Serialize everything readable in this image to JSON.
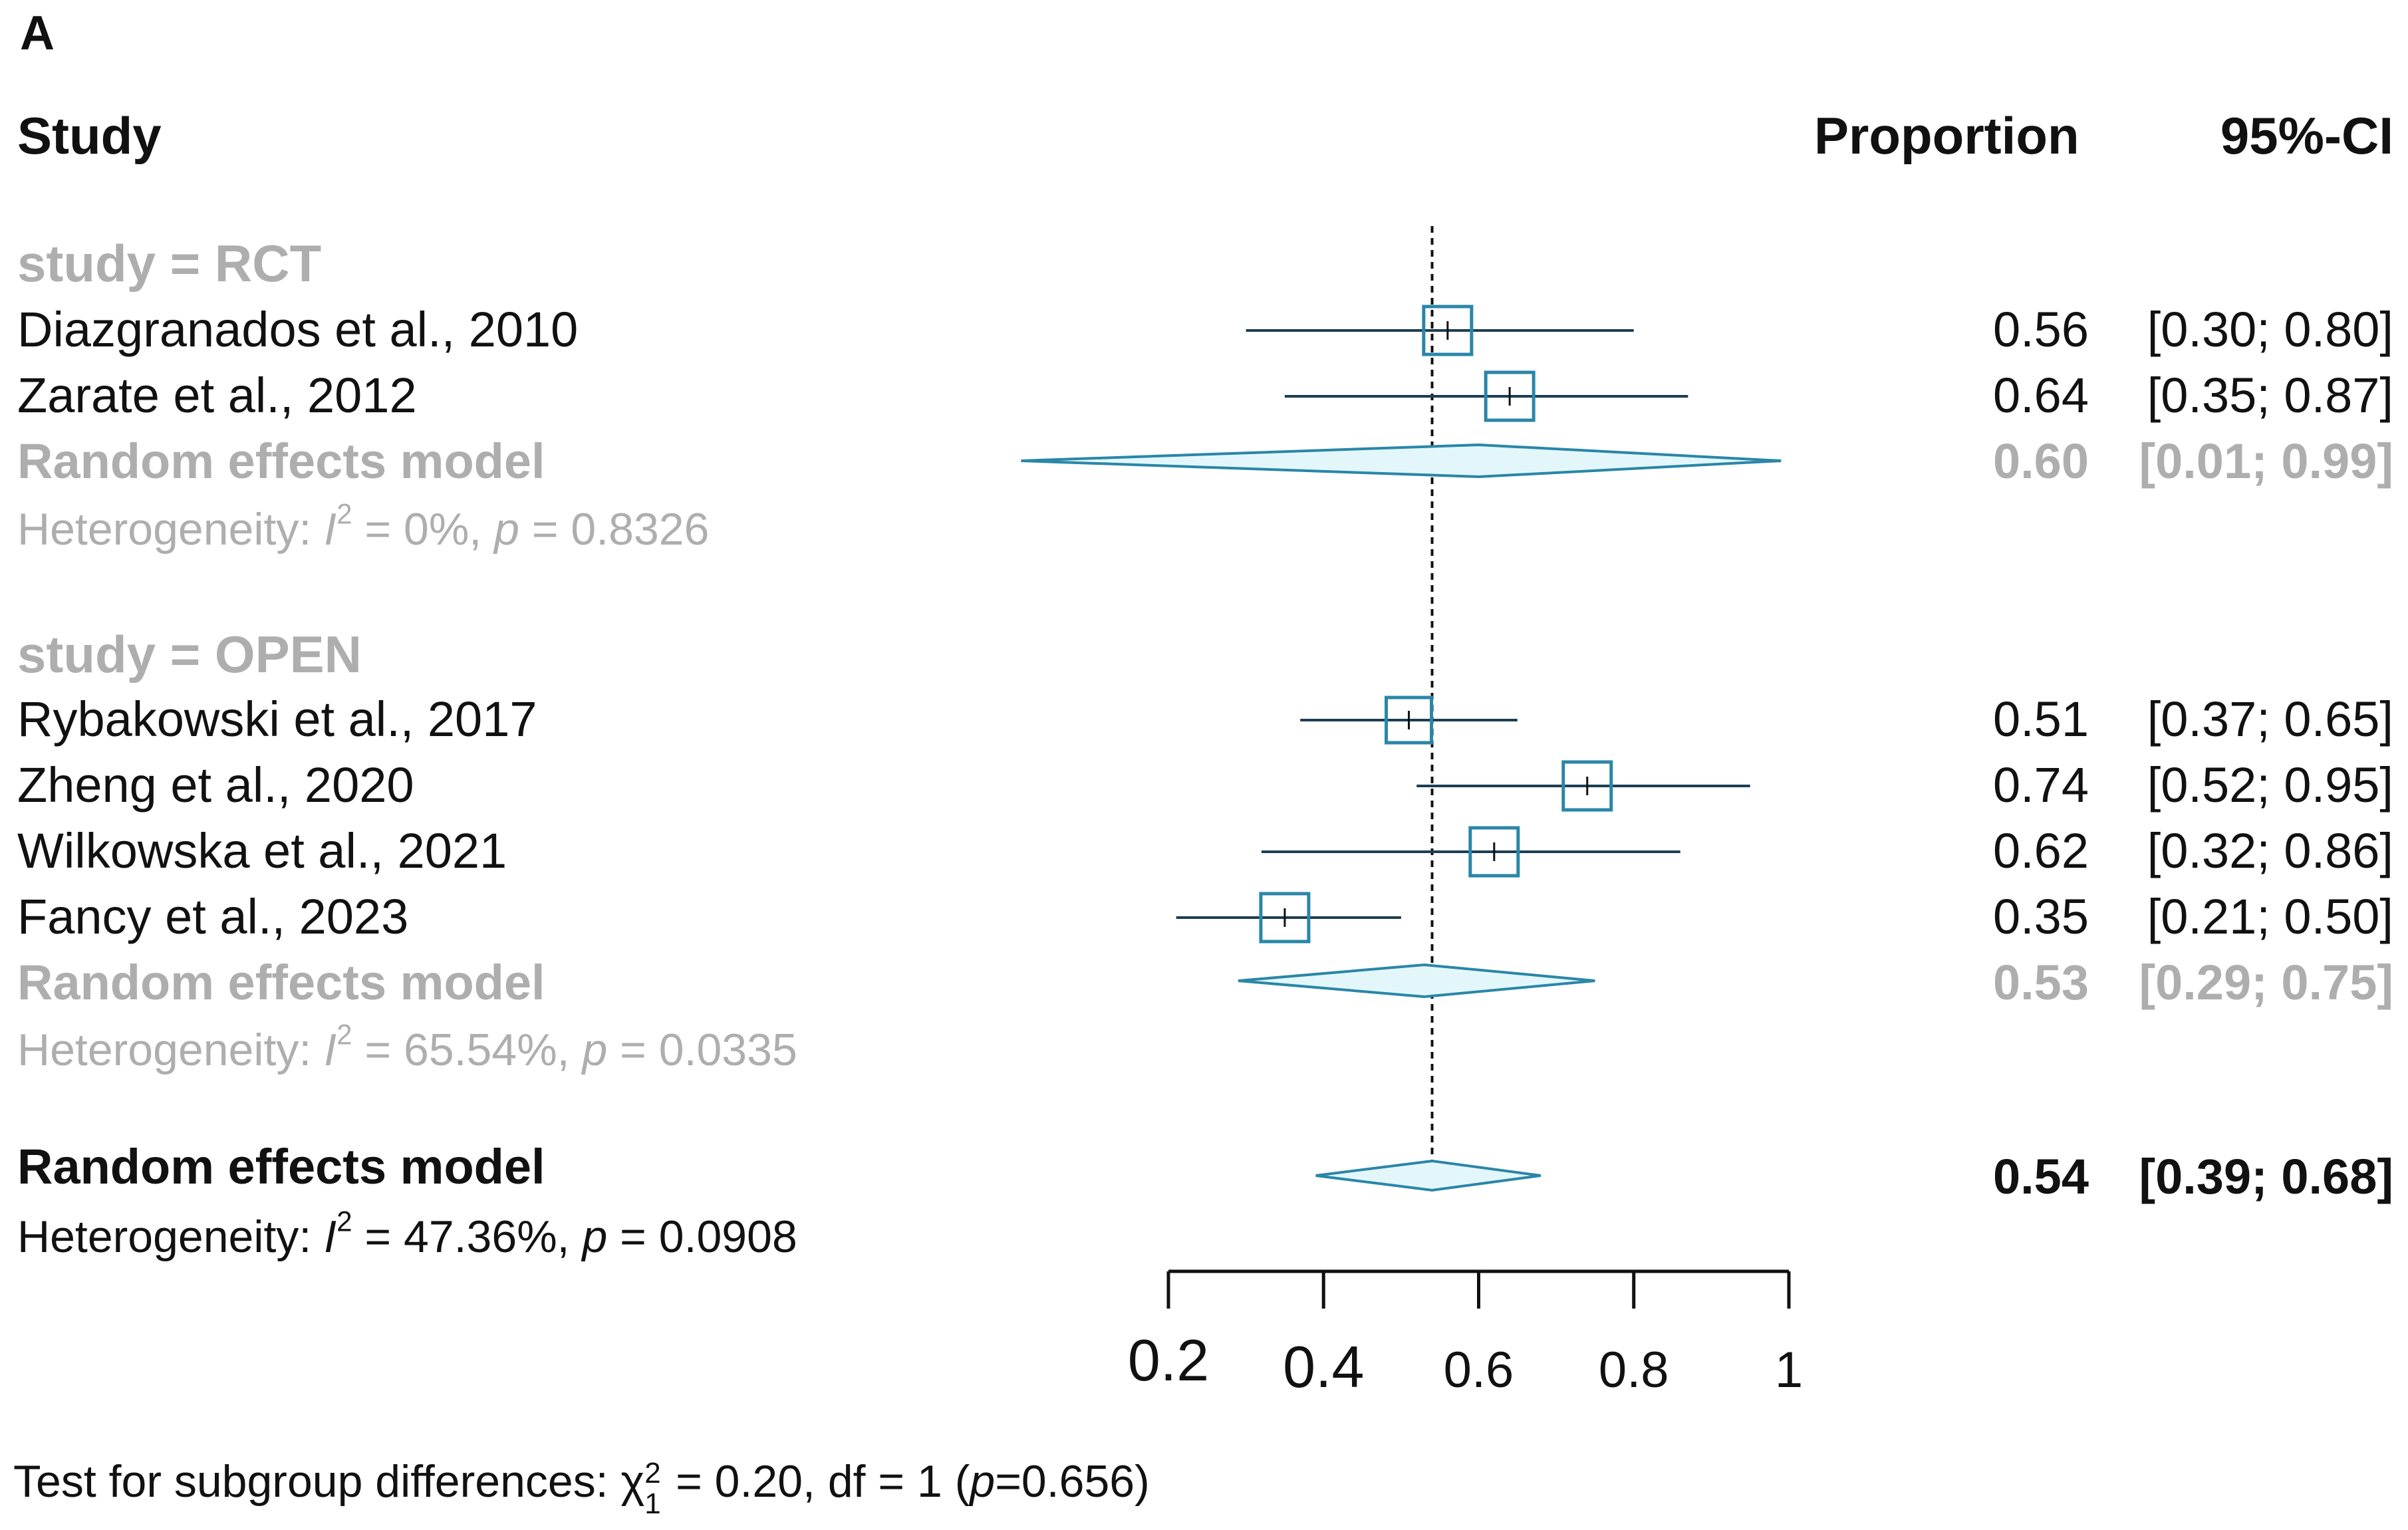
{
  "panel_label": "A",
  "headers": {
    "study": "Study",
    "proportion": "Proportion",
    "ci": "95%-CI"
  },
  "groups": [
    {
      "title": "study = RCT",
      "studies": [
        {
          "name": "Diazgranados et al., 2010",
          "proportion": "0.56",
          "ci": "[0.30; 0.80]"
        },
        {
          "name": "Zarate et al., 2012",
          "proportion": "0.64",
          "ci": "[0.35; 0.87]"
        }
      ],
      "model": {
        "label": "Random effects model",
        "proportion": "0.60",
        "ci": "[0.01; 0.99]"
      },
      "heterogeneity": {
        "prefix": "Heterogeneity: ",
        "i_symbol": "I",
        "sup": "2",
        "i2_text": " = 0%, ",
        "p_symbol": "p",
        "p_text": " = 0.8326"
      }
    },
    {
      "title": "study = OPEN",
      "studies": [
        {
          "name": "Rybakowski et al., 2017",
          "proportion": "0.51",
          "ci": "[0.37; 0.65]"
        },
        {
          "name": "Zheng et al., 2020",
          "proportion": "0.74",
          "ci": "[0.52; 0.95]"
        },
        {
          "name": "Wilkowska et al., 2021",
          "proportion": "0.62",
          "ci": "[0.32; 0.86]"
        },
        {
          "name": "Fancy et al., 2023",
          "proportion": "0.35",
          "ci": "[0.21; 0.50]"
        }
      ],
      "model": {
        "label": "Random effects model",
        "proportion": "0.53",
        "ci": "[0.29; 0.75]"
      },
      "heterogeneity": {
        "prefix": "Heterogeneity: ",
        "i_symbol": "I",
        "sup": "2",
        "i2_text": " = 65.54%, ",
        "p_symbol": "p",
        "p_text": " = 0.0335"
      }
    }
  ],
  "overall": {
    "label": "Random effects model",
    "proportion": "0.54",
    "ci": "[0.39; 0.68]",
    "heterogeneity": {
      "prefix": "Heterogeneity: ",
      "i_symbol": "I",
      "sup": "2",
      "i2_text": " = 47.36%, ",
      "p_symbol": "p",
      "p_text": " = 0.0908"
    }
  },
  "subgroup_test": {
    "prefix": "Test for subgroup differences: ",
    "chi": "χ",
    "chi_sup": "2",
    "chi_sub": "1",
    "rest1": " = 0.20, df = 1 (",
    "p_symbol": "p",
    "rest2": "=0.656)"
  },
  "colors": {
    "marker": "#2a86a8",
    "ci_line": "#1c3e52",
    "diamond_fill": "#e3f7fa",
    "grey_text": "#aeaeae"
  },
  "chart_data": {
    "type": "forest",
    "xlim": [
      0.2,
      1
    ],
    "ticks": [
      0.2,
      0.4,
      0.6,
      0.8,
      1
    ],
    "tick_labels": [
      "0.2",
      "0.4",
      "0.6",
      "0.8",
      "1"
    ],
    "reference_line": 0.54,
    "studies": [
      {
        "name": "Diazgranados et al., 2010",
        "group": "RCT",
        "est": 0.56,
        "lo": 0.3,
        "hi": 0.8
      },
      {
        "name": "Zarate et al., 2012",
        "group": "RCT",
        "est": 0.64,
        "lo": 0.35,
        "hi": 0.87
      },
      {
        "name": "Rybakowski et al., 2017",
        "group": "OPEN",
        "est": 0.51,
        "lo": 0.37,
        "hi": 0.65
      },
      {
        "name": "Zheng et al., 2020",
        "group": "OPEN",
        "est": 0.74,
        "lo": 0.52,
        "hi": 0.95
      },
      {
        "name": "Wilkowska et al., 2021",
        "group": "OPEN",
        "est": 0.62,
        "lo": 0.32,
        "hi": 0.86
      },
      {
        "name": "Fancy et al., 2023",
        "group": "OPEN",
        "est": 0.35,
        "lo": 0.21,
        "hi": 0.5
      }
    ],
    "pooled": [
      {
        "name": "RCT random effects",
        "est": 0.6,
        "lo": 0.01,
        "hi": 0.99
      },
      {
        "name": "OPEN random effects",
        "est": 0.53,
        "lo": 0.29,
        "hi": 0.75
      },
      {
        "name": "Overall random effects",
        "est": 0.54,
        "lo": 0.39,
        "hi": 0.68
      }
    ]
  }
}
